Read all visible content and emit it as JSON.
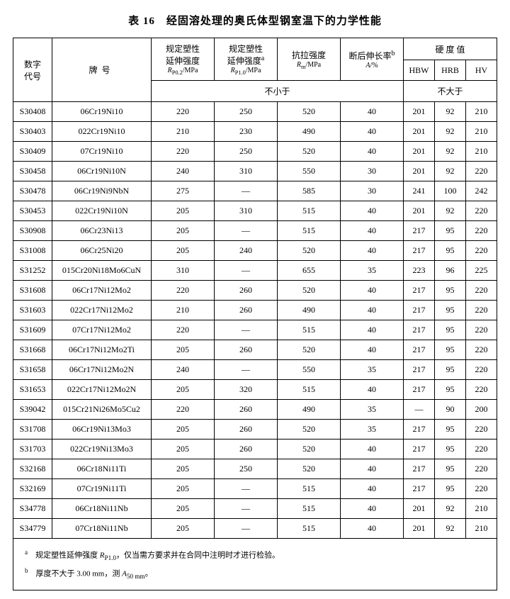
{
  "title": "表 16　经固溶处理的奥氏体型钢室温下的力学性能",
  "headers": {
    "code": "数字\n代号",
    "grade": "牌号",
    "rp02_line1": "规定塑性",
    "rp02_line2": "延伸强度",
    "rp02_line3": "RP0.2/MPa",
    "rp10_line1": "规定塑性",
    "rp10_line2": "延伸强度a",
    "rp10_line3": "RP1.0/MPa",
    "rm_line1": "抗拉强度",
    "rm_line2": "Rm/MPa",
    "a_line1": "断后伸长率b",
    "a_line2": "A/%",
    "hardness": "硬 度 值",
    "hbw": "HBW",
    "hrb": "HRB",
    "hv": "HV",
    "not_less": "不小于",
    "not_more": "不大于"
  },
  "rows": [
    {
      "code": "S30408",
      "grade": "06Cr19Ni10",
      "rp02": "220",
      "rp10": "250",
      "rm": "520",
      "a": "40",
      "hbw": "201",
      "hrb": "92",
      "hv": "210"
    },
    {
      "code": "S30403",
      "grade": "022Cr19Ni10",
      "rp02": "210",
      "rp10": "230",
      "rm": "490",
      "a": "40",
      "hbw": "201",
      "hrb": "92",
      "hv": "210"
    },
    {
      "code": "S30409",
      "grade": "07Cr19Ni10",
      "rp02": "220",
      "rp10": "250",
      "rm": "520",
      "a": "40",
      "hbw": "201",
      "hrb": "92",
      "hv": "210"
    },
    {
      "code": "S30458",
      "grade": "06Cr19Ni10N",
      "rp02": "240",
      "rp10": "310",
      "rm": "550",
      "a": "30",
      "hbw": "201",
      "hrb": "92",
      "hv": "220"
    },
    {
      "code": "S30478",
      "grade": "06Cr19Ni9NbN",
      "rp02": "275",
      "rp10": "—",
      "rm": "585",
      "a": "30",
      "hbw": "241",
      "hrb": "100",
      "hv": "242"
    },
    {
      "code": "S30453",
      "grade": "022Cr19Ni10N",
      "rp02": "205",
      "rp10": "310",
      "rm": "515",
      "a": "40",
      "hbw": "201",
      "hrb": "92",
      "hv": "220"
    },
    {
      "code": "S30908",
      "grade": "06Cr23Ni13",
      "rp02": "205",
      "rp10": "—",
      "rm": "515",
      "a": "40",
      "hbw": "217",
      "hrb": "95",
      "hv": "220"
    },
    {
      "code": "S31008",
      "grade": "06Cr25Ni20",
      "rp02": "205",
      "rp10": "240",
      "rm": "520",
      "a": "40",
      "hbw": "217",
      "hrb": "95",
      "hv": "220"
    },
    {
      "code": "S31252",
      "grade": "015Cr20Ni18Mo6CuN",
      "rp02": "310",
      "rp10": "—",
      "rm": "655",
      "a": "35",
      "hbw": "223",
      "hrb": "96",
      "hv": "225"
    },
    {
      "code": "S31608",
      "grade": "06Cr17Ni12Mo2",
      "rp02": "220",
      "rp10": "260",
      "rm": "520",
      "a": "40",
      "hbw": "217",
      "hrb": "95",
      "hv": "220"
    },
    {
      "code": "S31603",
      "grade": "022Cr17Ni12Mo2",
      "rp02": "210",
      "rp10": "260",
      "rm": "490",
      "a": "40",
      "hbw": "217",
      "hrb": "95",
      "hv": "220"
    },
    {
      "code": "S31609",
      "grade": "07Cr17Ni12Mo2",
      "rp02": "220",
      "rp10": "—",
      "rm": "515",
      "a": "40",
      "hbw": "217",
      "hrb": "95",
      "hv": "220"
    },
    {
      "code": "S31668",
      "grade": "06Cr17Ni12Mo2Ti",
      "rp02": "205",
      "rp10": "260",
      "rm": "520",
      "a": "40",
      "hbw": "217",
      "hrb": "95",
      "hv": "220"
    },
    {
      "code": "S31658",
      "grade": "06Cr17Ni12Mo2N",
      "rp02": "240",
      "rp10": "—",
      "rm": "550",
      "a": "35",
      "hbw": "217",
      "hrb": "95",
      "hv": "220"
    },
    {
      "code": "S31653",
      "grade": "022Cr17Ni12Mo2N",
      "rp02": "205",
      "rp10": "320",
      "rm": "515",
      "a": "40",
      "hbw": "217",
      "hrb": "95",
      "hv": "220"
    },
    {
      "code": "S39042",
      "grade": "015Cr21Ni26Mo5Cu2",
      "rp02": "220",
      "rp10": "260",
      "rm": "490",
      "a": "35",
      "hbw": "—",
      "hrb": "90",
      "hv": "200"
    },
    {
      "code": "S31708",
      "grade": "06Cr19Ni13Mo3",
      "rp02": "205",
      "rp10": "260",
      "rm": "520",
      "a": "35",
      "hbw": "217",
      "hrb": "95",
      "hv": "220"
    },
    {
      "code": "S31703",
      "grade": "022Cr19Ni13Mo3",
      "rp02": "205",
      "rp10": "260",
      "rm": "520",
      "a": "40",
      "hbw": "217",
      "hrb": "95",
      "hv": "220"
    },
    {
      "code": "S32168",
      "grade": "06Cr18Ni11Ti",
      "rp02": "205",
      "rp10": "250",
      "rm": "520",
      "a": "40",
      "hbw": "217",
      "hrb": "95",
      "hv": "220"
    },
    {
      "code": "S32169",
      "grade": "07Cr19Ni11Ti",
      "rp02": "205",
      "rp10": "—",
      "rm": "515",
      "a": "40",
      "hbw": "217",
      "hrb": "95",
      "hv": "220"
    },
    {
      "code": "S34778",
      "grade": "06Cr18Ni11Nb",
      "rp02": "205",
      "rp10": "—",
      "rm": "515",
      "a": "40",
      "hbw": "201",
      "hrb": "92",
      "hv": "210"
    },
    {
      "code": "S34779",
      "grade": "07Cr18Ni11Nb",
      "rp02": "205",
      "rp10": "—",
      "rm": "515",
      "a": "40",
      "hbw": "201",
      "hrb": "92",
      "hv": "210"
    }
  ],
  "notes": {
    "a": "a　规定塑性延伸强度 RP1.0，仅当需方要求并在合同中注明时才进行检验。",
    "b": "b　厚度不大于 3.00 mm，测 A50 mm。"
  }
}
